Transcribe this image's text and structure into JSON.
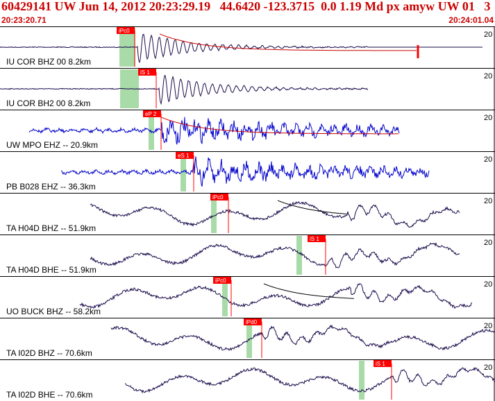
{
  "header": {
    "title": "60429141 UW Jun 14, 2012 20:23:29.19   44.6420 -123.3715  0.0 1.19 Md px amyw UW 01   3",
    "start_time": "20:23:20.71",
    "end_time": "20:24:01.04"
  },
  "colors": {
    "text": "#cc0000",
    "pick": "#ff0000",
    "pick_band": "#a9dba9",
    "trace_dark": "#1a0a4a",
    "trace_blue": "#0000cc",
    "coda": "#cc0000",
    "grid": "#000000"
  },
  "chart_data": {
    "type": "line",
    "x_unit": "time",
    "time_range": [
      "20:23:20.71",
      "20:24:01.04"
    ],
    "traces": [
      {
        "label": "IU COR BHZ 00 8.2km",
        "scale": "20",
        "color": "#1a0a4a",
        "picks": [
          "iPc0"
        ],
        "coda": true
      },
      {
        "label": "IU COR BH2 00 8.2km",
        "scale": "20",
        "color": "#1a0a4a",
        "picks": [
          "iS 1"
        ],
        "coda": false
      },
      {
        "label": "UW MPO EHZ -- 20.9km",
        "scale": "20",
        "color": "#0000cc",
        "picks": [
          "eP 2"
        ],
        "coda": true
      },
      {
        "label": "PB B028 EHZ -- 36.3km",
        "scale": "20",
        "color": "#0000cc",
        "picks": [
          "eS 1"
        ],
        "coda": false
      },
      {
        "label": "TA H04D BHZ -- 51.9km",
        "scale": "20",
        "color": "#1a0a4a",
        "picks": [
          "iPc0"
        ],
        "coda": true
      },
      {
        "label": "TA H04D BHE -- 51.9km",
        "scale": "20",
        "color": "#1a0a4a",
        "picks": [
          "iS 1"
        ],
        "coda": false
      },
      {
        "label": "UO BUCK BHZ -- 58.2km",
        "scale": "20",
        "color": "#1a0a4a",
        "picks": [
          "iPc0"
        ],
        "coda": true
      },
      {
        "label": "TA I02D BHZ -- 70.6km",
        "scale": "20",
        "color": "#1a0a4a",
        "picks": [
          "iPd0"
        ],
        "coda": false
      },
      {
        "label": "TA I02D BHE -- 70.6km",
        "scale": "20",
        "color": "#1a0a4a",
        "picks": [
          "iS 1"
        ],
        "coda": false
      }
    ]
  }
}
